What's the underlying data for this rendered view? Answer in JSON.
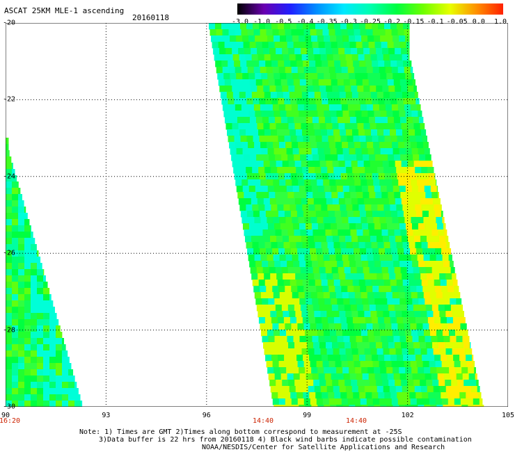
{
  "title": "ASCAT 25KM MLE-1 ascending",
  "date": "20160118",
  "colorbar": {
    "labels": [
      "-3.0",
      "-1.0",
      "-0.5",
      "-0.4",
      "-0.35",
      "-0.3",
      "-0.25",
      "-0.2",
      "-0.15",
      "-0.1",
      "-0.05",
      "0.0",
      "1.0"
    ],
    "colors": [
      "#000000",
      "#6a00b0",
      "#2020ff",
      "#0090ff",
      "#00d8ff",
      "#00ffe0",
      "#00ff90",
      "#00ff20",
      "#70ff00",
      "#d0ff00",
      "#ffee00",
      "#ff9000",
      "#ff2000"
    ]
  },
  "map": {
    "lon_labels": [
      "90",
      "93",
      "96",
      "99",
      "102",
      "105"
    ],
    "lat_labels": [
      "-20",
      "-22",
      "-24",
      "-26",
      "-28",
      "-30"
    ],
    "time_labels": [
      "16:20",
      "14:40",
      "14:40"
    ],
    "lon_range": [
      90,
      105
    ],
    "lat_range": [
      -30,
      -20
    ]
  },
  "notes": {
    "line1": "Note: 1) Times are GMT 2)Times along bottom correspond to measurement at -25S",
    "line2": "3)Data buffer is 22 hrs from 20160118 4) Black wind barbs indicate possible contamination",
    "line3": "NOAA/NESDIS/Center for Satellite Applications and Research"
  }
}
